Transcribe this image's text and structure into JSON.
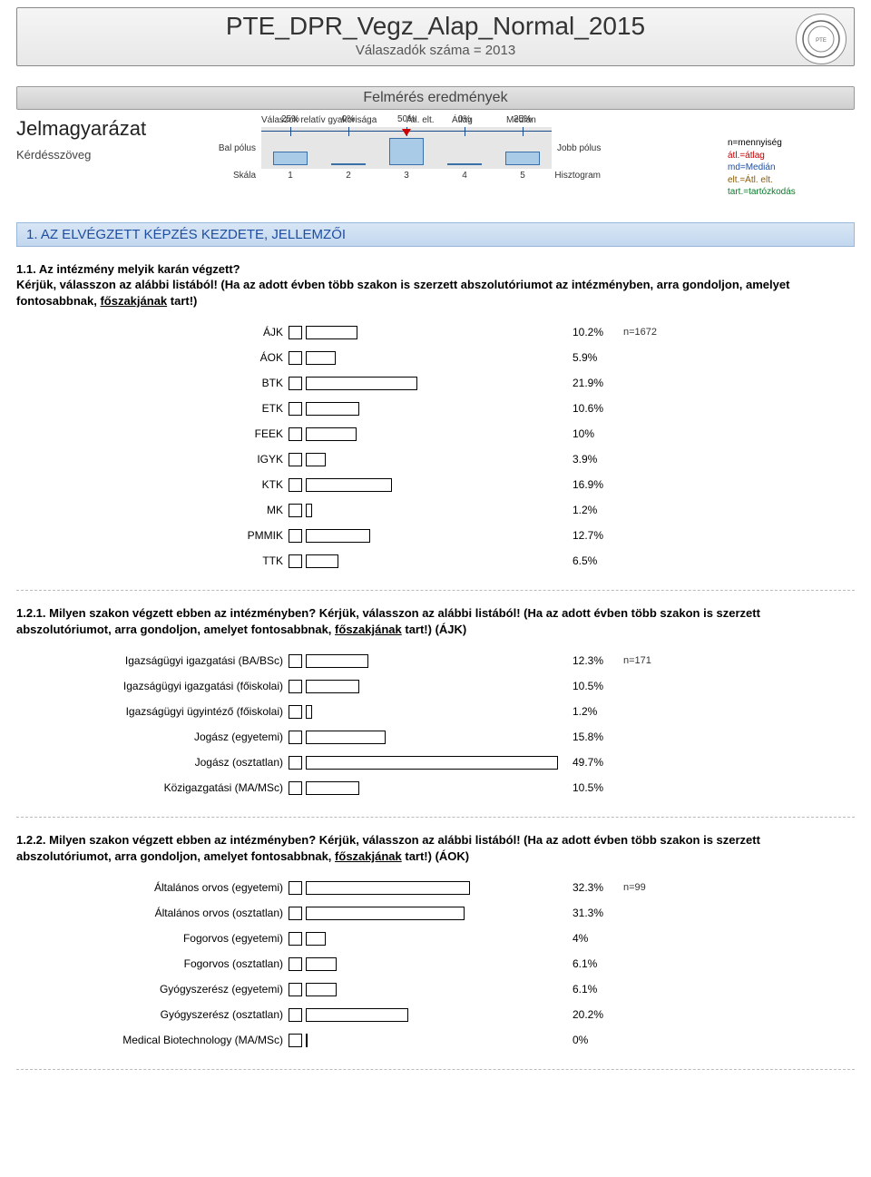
{
  "header": {
    "title": "PTE_DPR_Vegz_Alap_Normal_2015",
    "subtitle": "Válaszadók száma = 2013",
    "logo_alt": "university seal"
  },
  "results_bar": "Felmérés eredmények",
  "legend": {
    "heading": "Jelmagyarázat",
    "subheading": "Kérdésszöveg",
    "top_labels": {
      "rel": "Válaszok relatív gyakorisága",
      "atlelt": "Átl. elt.",
      "atlag": "Átlag",
      "median": "Medián"
    },
    "left_pole": "Bal pólus",
    "right_pole": "Jobb pólus",
    "scale_label": "Skála",
    "histo_label": "Hisztogram",
    "pct_top": [
      "25%",
      "0%",
      "50%",
      "0%",
      "25%"
    ],
    "scale_nums": [
      "1",
      "2",
      "3",
      "4",
      "5"
    ],
    "bar_heights_pct": [
      25,
      0,
      50,
      0,
      25
    ],
    "bar_color": "#a9cbe8",
    "line_color": "#1a4b8a",
    "bg_color": "#e6e6e6",
    "right_notes": {
      "n": "n=mennyiség",
      "atl": "átl.=átlag",
      "md": "md=Medián",
      "elt": "elt.=Átl. elt.",
      "tart": "tart.=tartózkodás"
    }
  },
  "section1_title": "1. AZ ELVÉGZETT KÉPZÉS KEZDETE, JELLEMZŐI",
  "q11": {
    "text_a": "1.1. Az intézmény melyik karán végzett?",
    "text_b": "Kérjük, válasszon az alábbi listából! (Ha az adott évben több szakon is szerzett abszolutóriumot az intézményben, arra gondoljon, amelyet fontosabbnak, ",
    "underline": "főszakjának",
    "text_c": " tart!)",
    "n_note": "n=1672",
    "bar_area_width": 280,
    "rows": [
      {
        "label": "ÁJK",
        "pct": 10.2,
        "disp": "10.2%"
      },
      {
        "label": "ÁOK",
        "pct": 5.9,
        "disp": "5.9%"
      },
      {
        "label": "BTK",
        "pct": 21.9,
        "disp": "21.9%"
      },
      {
        "label": "ETK",
        "pct": 10.6,
        "disp": "10.6%"
      },
      {
        "label": "FEEK",
        "pct": 10,
        "disp": "10%"
      },
      {
        "label": "IGYK",
        "pct": 3.9,
        "disp": "3.9%"
      },
      {
        "label": "KTK",
        "pct": 16.9,
        "disp": "16.9%"
      },
      {
        "label": "MK",
        "pct": 1.2,
        "disp": "1.2%"
      },
      {
        "label": "PMMIK",
        "pct": 12.7,
        "disp": "12.7%"
      },
      {
        "label": "TTK",
        "pct": 6.5,
        "disp": "6.5%"
      }
    ]
  },
  "q121": {
    "text_a": "1.2.1. Milyen szakon végzett ebben az intézményben? Kérjük, válasszon az alábbi listából! (Ha az adott évben több szakon is szerzett abszolutóriumot, arra gondoljon, amelyet fontosabbnak, ",
    "underline": "főszakjának",
    "text_c": " tart!) (ÁJK)",
    "n_note": "n=171",
    "bar_area_width": 280,
    "rows": [
      {
        "label": "Igazságügyi igazgatási (BA/BSc)",
        "pct": 12.3,
        "disp": "12.3%"
      },
      {
        "label": "Igazságügyi igazgatási (főiskolai)",
        "pct": 10.5,
        "disp": "10.5%"
      },
      {
        "label": "Igazságügyi ügyintéző (főiskolai)",
        "pct": 1.2,
        "disp": "1.2%"
      },
      {
        "label": "Jogász (egyetemi)",
        "pct": 15.8,
        "disp": "15.8%"
      },
      {
        "label": "Jogász (osztatlan)",
        "pct": 49.7,
        "disp": "49.7%"
      },
      {
        "label": "Közigazgatási (MA/MSc)",
        "pct": 10.5,
        "disp": "10.5%"
      }
    ]
  },
  "q122": {
    "text_a": "1.2.2. Milyen szakon végzett ebben az intézményben? Kérjük, válasszon az alábbi listából! (Ha az adott évben több szakon is szerzett abszolutóriumot, arra gondoljon, amelyet fontosabbnak, ",
    "underline": "főszakjának",
    "text_c": " tart!) (ÁOK)",
    "n_note": "n=99",
    "bar_area_width": 280,
    "rows": [
      {
        "label": "Általános orvos (egyetemi)",
        "pct": 32.3,
        "disp": "32.3%"
      },
      {
        "label": "Általános orvos (osztatlan)",
        "pct": 31.3,
        "disp": "31.3%"
      },
      {
        "label": "Fogorvos (egyetemi)",
        "pct": 4,
        "disp": "4%"
      },
      {
        "label": "Fogorvos (osztatlan)",
        "pct": 6.1,
        "disp": "6.1%"
      },
      {
        "label": "Gyógyszerész (egyetemi)",
        "pct": 6.1,
        "disp": "6.1%"
      },
      {
        "label": "Gyógyszerész (osztatlan)",
        "pct": 20.2,
        "disp": "20.2%"
      },
      {
        "label": "Medical Biotechnology (MA/MSc)",
        "pct": 0,
        "disp": "0%"
      }
    ]
  },
  "colors": {
    "page_text": "#000000",
    "header_from": "#f5f5f5",
    "header_to": "#e8e8e8",
    "section_from": "#e4e4e4",
    "section_to": "#cfcfcf",
    "blue_bar_from": "#d8e6f5",
    "blue_bar_to": "#c2d7ee",
    "blue_bar_text": "#1f4ea0",
    "bar_border": "#000000"
  }
}
